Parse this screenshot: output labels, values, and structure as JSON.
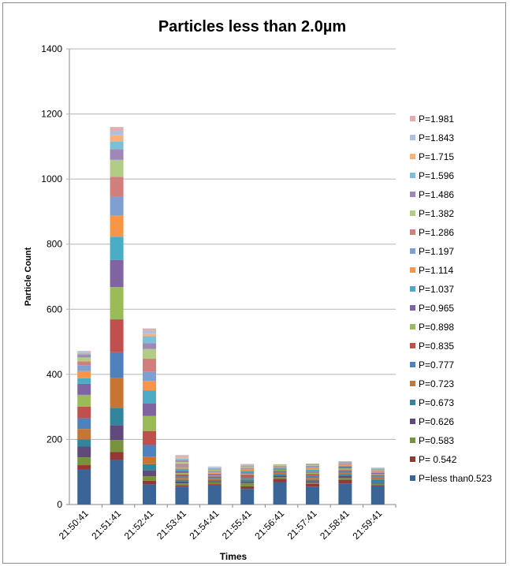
{
  "chart_data": {
    "type": "bar",
    "stacked": true,
    "title": "Particles less than 2.0µm",
    "xlabel": "Times",
    "ylabel": "Particle Count",
    "ylim": [
      0,
      1400
    ],
    "yticks": [
      0,
      200,
      400,
      600,
      800,
      1000,
      1200,
      1400
    ],
    "grid": true,
    "legend_position": "right",
    "categories": [
      "21:50:41",
      "21:51:41",
      "21:52:41",
      "21:53:41",
      "21:54:41",
      "21:55:41",
      "21:56:41",
      "21:57:41",
      "21:58:41",
      "21:59:41"
    ],
    "series": [
      {
        "name": "P=less than0.523",
        "color": "#3C6597",
        "values": [
          109,
          137,
          62,
          55,
          61,
          48,
          69,
          55,
          65,
          57
        ]
      },
      {
        "name": "P= 0.542",
        "color": "#953735",
        "values": [
          12,
          24,
          11,
          4,
          3,
          8,
          10,
          8,
          11,
          3
        ]
      },
      {
        "name": "P=0.583",
        "color": "#77933C",
        "values": [
          24,
          37,
          14,
          6,
          4,
          10,
          5,
          4,
          6,
          4
        ]
      },
      {
        "name": "P=0.626",
        "color": "#604A7B",
        "values": [
          33,
          46,
          18,
          6,
          4,
          5,
          5,
          5,
          6,
          3
        ]
      },
      {
        "name": "P=0.673",
        "color": "#31859C",
        "values": [
          22,
          53,
          19,
          5,
          3,
          6,
          4,
          4,
          5,
          10
        ]
      },
      {
        "name": "P=0.723",
        "color": "#C77532",
        "values": [
          32,
          92,
          23,
          6,
          4,
          4,
          4,
          6,
          5,
          8
        ]
      },
      {
        "name": "P=0.777",
        "color": "#4F81BD",
        "values": [
          33,
          79,
          36,
          5,
          3,
          4,
          4,
          7,
          4,
          3
        ]
      },
      {
        "name": "P=0.835",
        "color": "#C0504D",
        "values": [
          36,
          101,
          43,
          5,
          4,
          6,
          3,
          5,
          4,
          3
        ]
      },
      {
        "name": "P=0.898",
        "color": "#9BBB59",
        "values": [
          36,
          99,
          46,
          5,
          3,
          4,
          3,
          4,
          5,
          3
        ]
      },
      {
        "name": "P=0.965",
        "color": "#8064A2",
        "values": [
          34,
          83,
          39,
          6,
          3,
          4,
          3,
          3,
          4,
          3
        ]
      },
      {
        "name": "P=1.037",
        "color": "#4BACC6",
        "values": [
          17,
          72,
          40,
          7,
          3,
          5,
          3,
          6,
          4,
          2
        ]
      },
      {
        "name": "P=1.114",
        "color": "#F79646",
        "values": [
          22,
          65,
          29,
          5,
          3,
          3,
          2,
          5,
          3,
          2
        ]
      },
      {
        "name": "P=1.197",
        "color": "#7F9FD0",
        "values": [
          18,
          58,
          29,
          5,
          3,
          3,
          2,
          4,
          3,
          2
        ]
      },
      {
        "name": "P=1.286",
        "color": "#D07F7D",
        "values": [
          12,
          61,
          39,
          5,
          3,
          3,
          2,
          3,
          2,
          2
        ]
      },
      {
        "name": "P=1.382",
        "color": "#B2CC86",
        "values": [
          12,
          52,
          30,
          6,
          3,
          3,
          2,
          2,
          2,
          2
        ]
      },
      {
        "name": "P=1.486",
        "color": "#9E88B6",
        "values": [
          8,
          33,
          18,
          5,
          3,
          2,
          1,
          2,
          2,
          2
        ]
      },
      {
        "name": "P=1.596",
        "color": "#7CC0D8",
        "values": [
          4,
          24,
          21,
          5,
          2,
          2,
          1,
          2,
          1,
          2
        ]
      },
      {
        "name": "P=1.715",
        "color": "#F9B07A",
        "values": [
          4,
          18,
          8,
          4,
          2,
          2,
          1,
          1,
          1,
          1
        ]
      },
      {
        "name": "P=1.843",
        "color": "#AFC0DE",
        "values": [
          2,
          14,
          8,
          3,
          2,
          2,
          0,
          0,
          0,
          1
        ]
      },
      {
        "name": "P=1.981",
        "color": "#E0AFAE",
        "values": [
          2,
          12,
          8,
          4,
          1,
          1,
          0,
          0,
          0,
          1
        ]
      }
    ]
  }
}
